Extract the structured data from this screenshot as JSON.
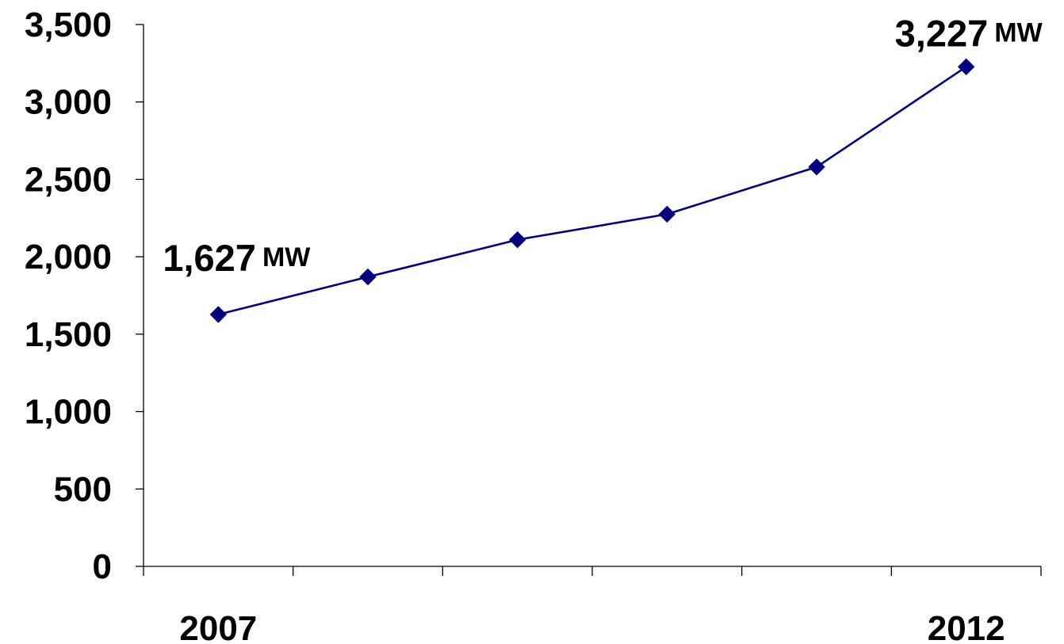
{
  "chart_data": {
    "type": "line",
    "title": "",
    "xlabel": "",
    "ylabel": "",
    "x": [
      2007,
      2008,
      2009,
      2010,
      2011,
      2012
    ],
    "x_tick_labels": [
      {
        "index": 0,
        "text": "2007"
      },
      {
        "index": 5,
        "text": "2012"
      }
    ],
    "series": [
      {
        "values": [
          1627,
          1870,
          2110,
          2275,
          2580,
          3227
        ],
        "color": "#000080",
        "marker": "diamond"
      }
    ],
    "ylim": [
      0,
      3500
    ],
    "y_ticks": [
      0,
      500,
      1000,
      1500,
      2000,
      2500,
      3000,
      3500
    ],
    "y_tick_labels": [
      "0",
      "500",
      "1,000",
      "1,500",
      "2,000",
      "2,500",
      "3,000",
      "3,500"
    ],
    "grid": false,
    "legend": "none",
    "annotations": [
      {
        "index": 0,
        "value_text": "1,627",
        "unit_text": "MW"
      },
      {
        "index": 5,
        "value_text": "3,227",
        "unit_text": "MW"
      }
    ]
  }
}
